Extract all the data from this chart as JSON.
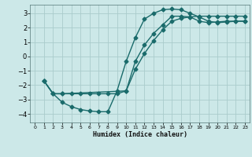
{
  "xlabel": "Humidex (Indice chaleur)",
  "background_color": "#cce8e8",
  "grid_color": "#aacccc",
  "line_color": "#1a6b6b",
  "markersize": 2.5,
  "linewidth": 1.0,
  "xlim": [
    -0.5,
    23.5
  ],
  "ylim": [
    -4.6,
    3.6
  ],
  "yticks": [
    -4,
    -3,
    -2,
    -1,
    0,
    1,
    2,
    3
  ],
  "xticks": [
    0,
    1,
    2,
    3,
    4,
    5,
    6,
    7,
    8,
    9,
    10,
    11,
    12,
    13,
    14,
    15,
    16,
    17,
    18,
    19,
    20,
    21,
    22,
    23
  ],
  "curve1_x": [
    1,
    2,
    3,
    4,
    5,
    6,
    7,
    8,
    9,
    10,
    11,
    12,
    13,
    14,
    15,
    16,
    17,
    18,
    19,
    20,
    21,
    22,
    23
  ],
  "curve1_y": [
    -1.7,
    -2.6,
    -3.2,
    -3.5,
    -3.7,
    -3.8,
    -3.85,
    -3.85,
    -2.4,
    -0.35,
    1.3,
    2.6,
    3.0,
    3.25,
    3.3,
    3.25,
    3.0,
    2.75,
    2.45,
    2.35,
    2.4,
    2.45,
    2.45
  ],
  "curve2_x": [
    1,
    2,
    3,
    10,
    11,
    12,
    13,
    14,
    15,
    16,
    17,
    18,
    19,
    20,
    21,
    22,
    23
  ],
  "curve2_y": [
    -1.7,
    -2.6,
    -2.6,
    -2.4,
    -0.35,
    0.8,
    1.6,
    2.2,
    2.8,
    2.8,
    2.75,
    2.45,
    2.35,
    2.4,
    2.45,
    2.45,
    2.45
  ],
  "curve3_x": [
    1,
    2,
    3,
    4,
    5,
    6,
    7,
    8,
    9,
    10,
    11,
    12,
    13,
    14,
    15,
    16,
    17,
    18,
    19,
    20,
    21,
    22,
    23
  ],
  "curve3_y": [
    -1.7,
    -2.6,
    -2.6,
    -2.6,
    -2.6,
    -2.6,
    -2.6,
    -2.6,
    -2.6,
    -2.4,
    -0.9,
    0.2,
    1.1,
    1.85,
    2.45,
    2.65,
    2.75,
    2.8,
    2.8,
    2.8,
    2.8,
    2.8,
    2.8
  ]
}
